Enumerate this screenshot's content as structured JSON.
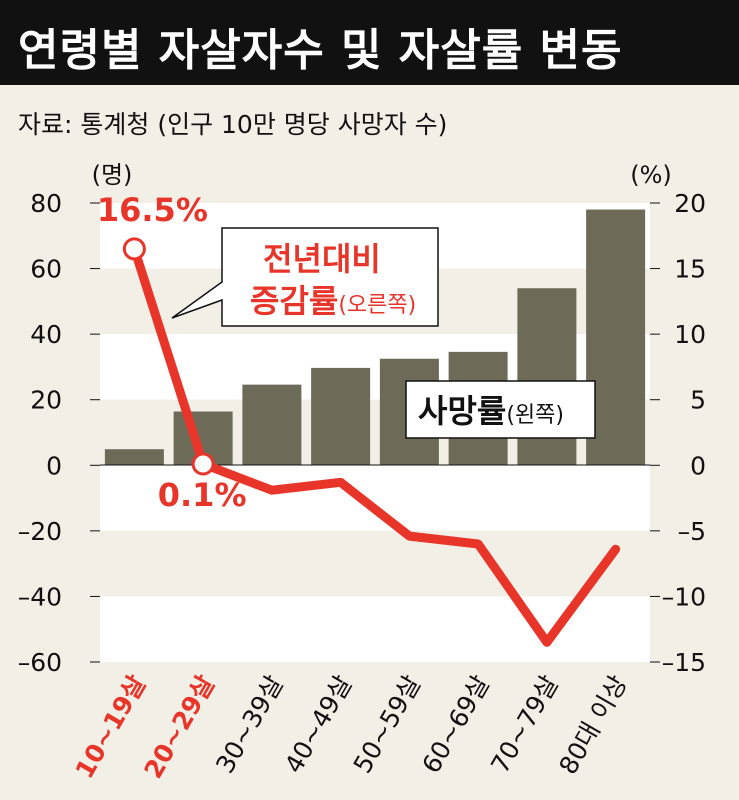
{
  "title": "연령별 자살자수 및 자살률 변동",
  "source": "자료: 통계청 (인구 10만 명당 사망자 수)",
  "colors": {
    "bar": "#6e6a58",
    "line": "#e8352a",
    "background": "#f2efe6",
    "band": "#ffffff"
  },
  "chart_data": {
    "type": "bar",
    "categories": [
      "10~19살",
      "20~29살",
      "30~39살",
      "40~49살",
      "50~59살",
      "60~69살",
      "70~79살",
      "80대 이상"
    ],
    "highlight_categories": [
      "10~19살",
      "20~29살"
    ],
    "left_axis": {
      "unit": "(명)",
      "ylim": [
        -60,
        80
      ],
      "ticks": [
        80,
        60,
        40,
        20,
        0,
        -20,
        -40,
        -60
      ],
      "tick_labels": [
        "80",
        "60",
        "40",
        "20",
        "0",
        "–20",
        "–40",
        "–60"
      ]
    },
    "right_axis": {
      "unit": "(%)",
      "ylim": [
        -15,
        20
      ],
      "ticks": [
        20,
        15,
        10,
        5,
        0,
        -5,
        -10,
        -15
      ],
      "tick_labels": [
        "20",
        "15",
        "10",
        "5",
        "0",
        "–5",
        "–10",
        "–15"
      ]
    },
    "series": [
      {
        "name": "사망률",
        "name_suffix": "(왼쪽)",
        "type": "bar",
        "axis": "left",
        "values": [
          4.9,
          16.4,
          24.6,
          29.7,
          32.5,
          34.6,
          54.0,
          78.0
        ]
      },
      {
        "name": "전년대비 증감률",
        "name_line1": "전년대비",
        "name_line2": "증감률",
        "name_suffix": "(오른쪽)",
        "type": "line",
        "axis": "right",
        "values": [
          16.5,
          0.1,
          -1.9,
          -1.3,
          -5.4,
          -6.0,
          -13.5,
          -6.4
        ]
      }
    ],
    "annotations": [
      {
        "category": "10~19살",
        "label": "16.5%"
      },
      {
        "category": "20~29살",
        "label": "0.1%"
      }
    ]
  }
}
